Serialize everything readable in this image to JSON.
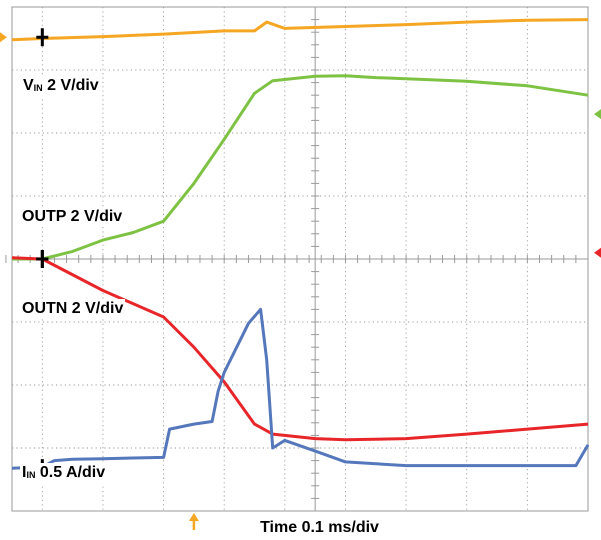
{
  "chart_data": {
    "type": "line",
    "title": "",
    "xlabel": "Time 0.1 ms/div",
    "x_unit": "ms",
    "x_range": [
      -0.05,
      0.9
    ],
    "y_unit": "div",
    "y_range": [
      0,
      8
    ],
    "grid": {
      "on": true,
      "x_divisions": 10,
      "y_divisions": 8,
      "style": "dotted"
    },
    "trigger_marker_x": 0.25,
    "colors": {
      "vin": "#f5a623",
      "outp": "#7dc242",
      "outn": "#e8262a",
      "iin": "#5577bb"
    },
    "series": [
      {
        "key": "vin",
        "label_main": "V",
        "label_sub": "IN",
        "label_rest": " 2 V/div",
        "ground_marker_y": 7.52,
        "x": [
          -0.05,
          0.0,
          0.1,
          0.2,
          0.3,
          0.35,
          0.37,
          0.4,
          0.5,
          0.6,
          0.7,
          0.8,
          0.9
        ],
        "y": [
          7.48,
          7.5,
          7.53,
          7.57,
          7.62,
          7.62,
          7.76,
          7.66,
          7.69,
          7.72,
          7.76,
          7.79,
          7.8
        ]
      },
      {
        "key": "outp",
        "label_main": "OUTP",
        "label_sub": "",
        "label_rest": " 2 V/div",
        "ground_marker_y": 4.0,
        "x": [
          -0.05,
          0.0,
          0.05,
          0.1,
          0.15,
          0.2,
          0.25,
          0.3,
          0.35,
          0.38,
          0.45,
          0.5,
          0.55,
          0.6,
          0.7,
          0.8,
          0.9
        ],
        "y": [
          4.0,
          4.0,
          4.12,
          4.3,
          4.42,
          4.6,
          5.2,
          5.9,
          6.63,
          6.83,
          6.9,
          6.91,
          6.88,
          6.86,
          6.82,
          6.75,
          6.6
        ]
      },
      {
        "key": "outn",
        "label_main": "OUTN",
        "label_sub": "",
        "label_rest": " 2 V/div",
        "ground_marker_y": 4.0,
        "x": [
          -0.05,
          0.0,
          0.1,
          0.2,
          0.25,
          0.3,
          0.35,
          0.38,
          0.45,
          0.5,
          0.6,
          0.7,
          0.8,
          0.9
        ],
        "y": [
          4.02,
          4.0,
          3.5,
          3.08,
          2.6,
          2.05,
          1.38,
          1.22,
          1.15,
          1.13,
          1.15,
          1.22,
          1.3,
          1.38
        ]
      },
      {
        "key": "iin",
        "label_main": "I",
        "label_sub": "IN",
        "label_rest": " 0.5 A/div",
        "ground_marker_y": 0.68,
        "x": [
          -0.05,
          0.0,
          0.02,
          0.05,
          0.1,
          0.2,
          0.21,
          0.25,
          0.28,
          0.29,
          0.3,
          0.34,
          0.36,
          0.37,
          0.38,
          0.4,
          0.45,
          0.5,
          0.6,
          0.7,
          0.8,
          0.88,
          0.9
        ],
        "y": [
          0.68,
          0.7,
          0.8,
          0.82,
          0.83,
          0.85,
          1.3,
          1.38,
          1.42,
          1.9,
          2.2,
          2.98,
          3.2,
          2.4,
          1.0,
          1.12,
          0.95,
          0.78,
          0.72,
          0.72,
          0.72,
          0.72,
          1.05
        ]
      }
    ]
  }
}
